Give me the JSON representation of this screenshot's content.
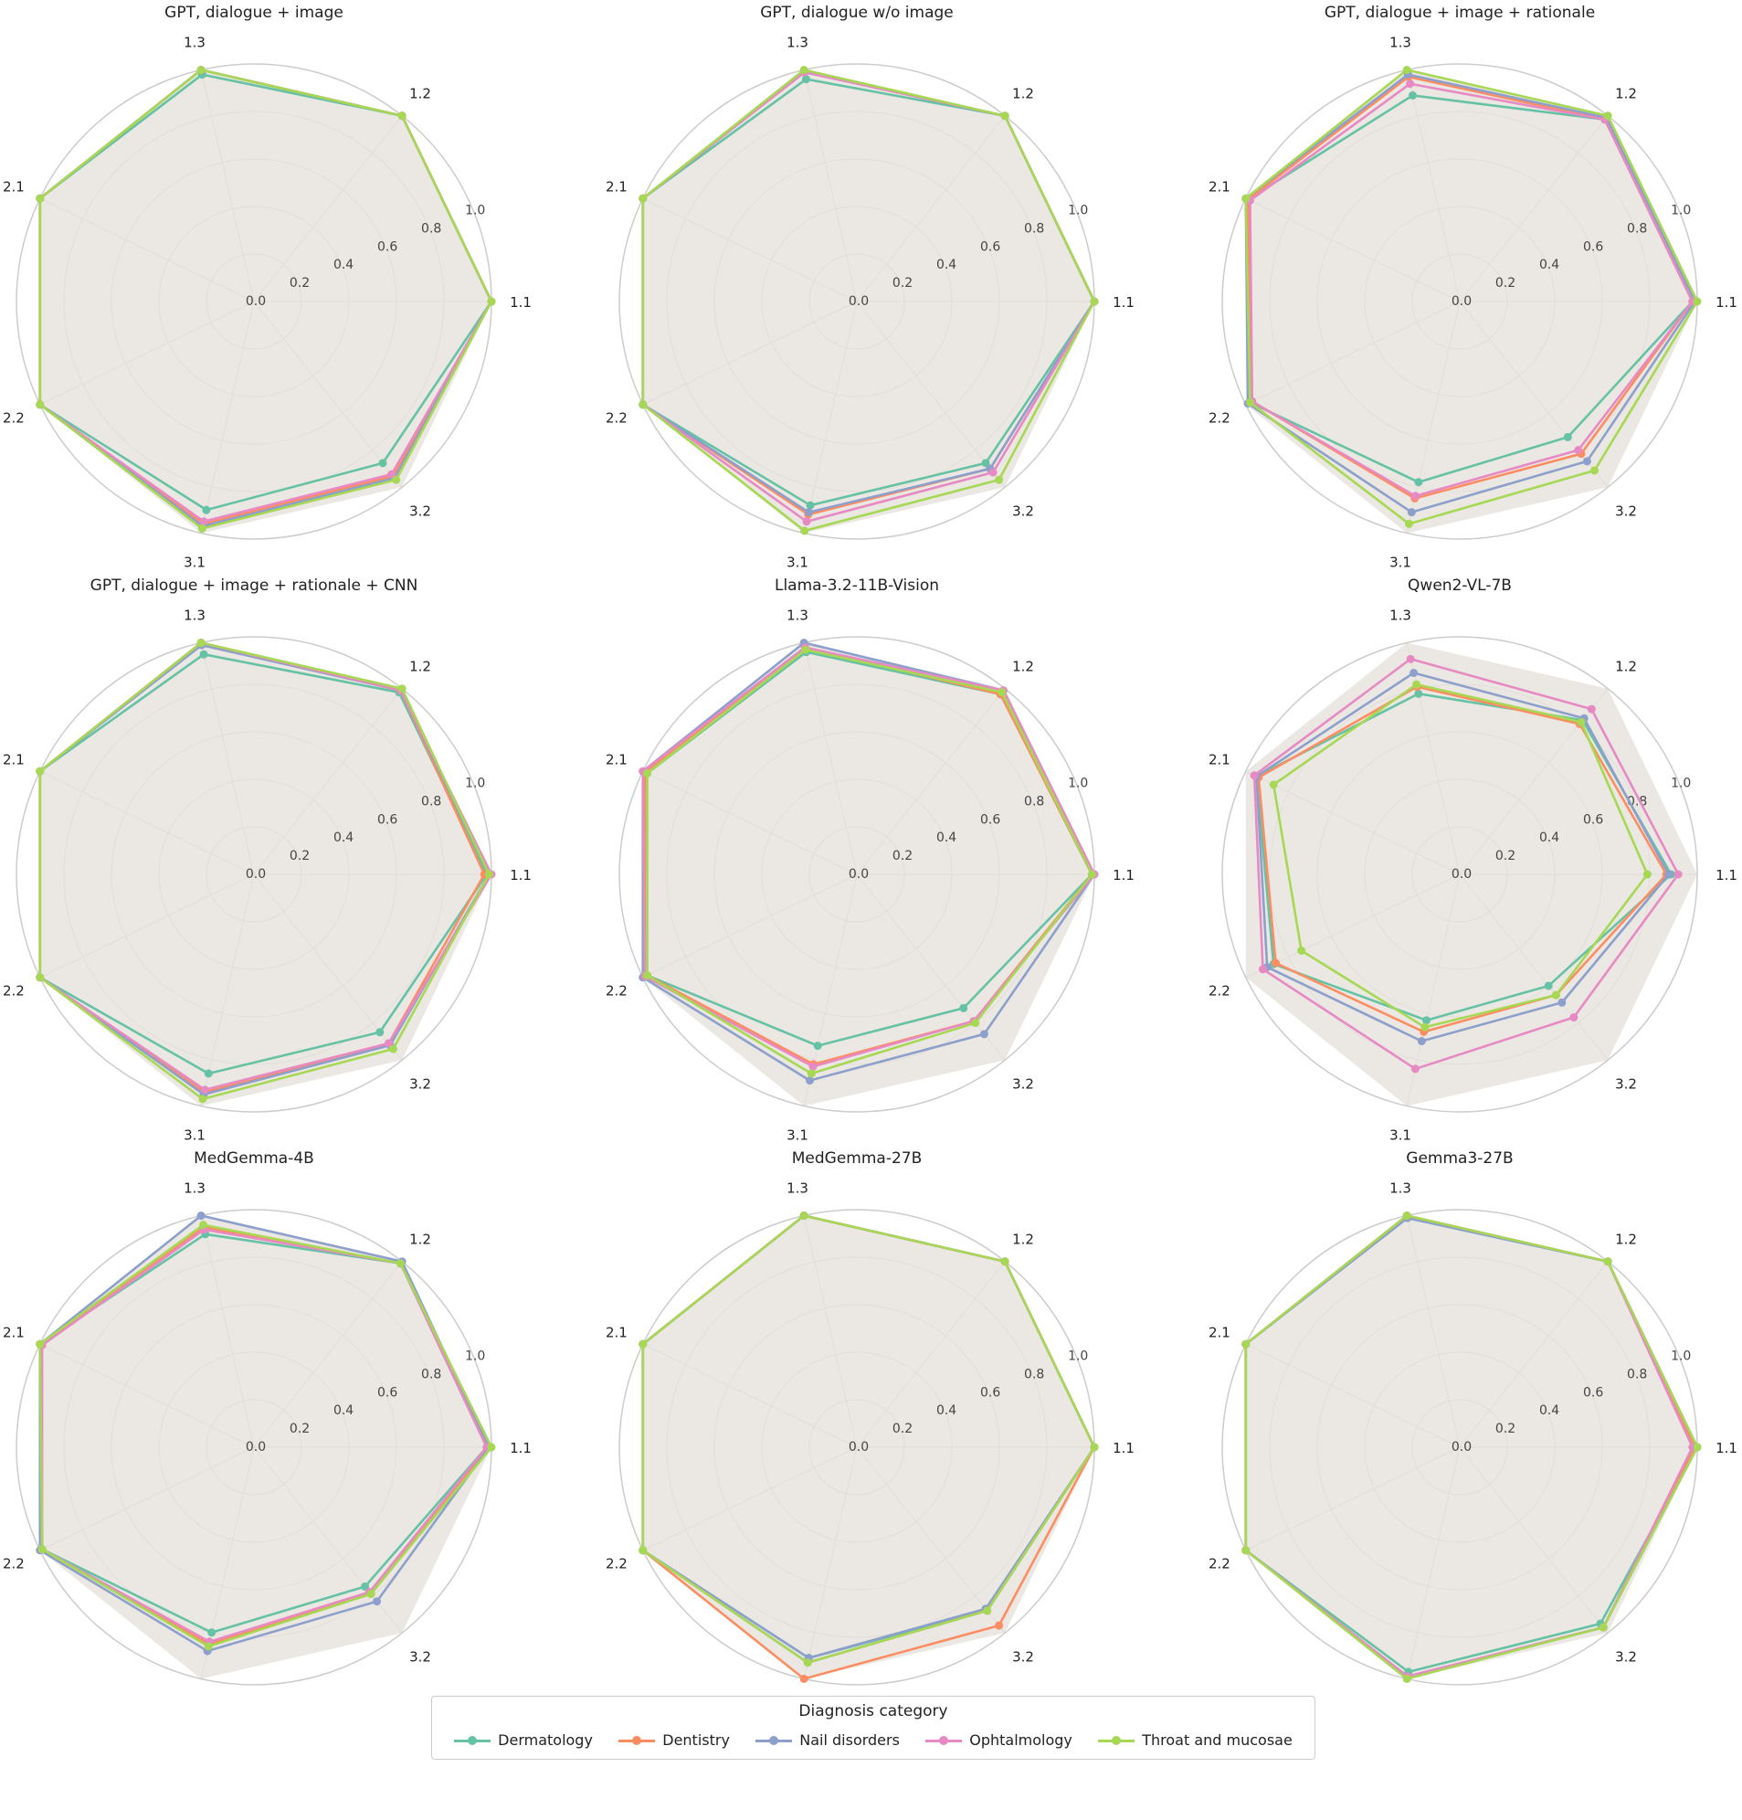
{
  "axes": [
    "1.1",
    "1.2",
    "1.3",
    "2.1",
    "2.2",
    "3.1",
    "3.2"
  ],
  "radial_ticks": [
    "0.0",
    "0.2",
    "0.4",
    "0.6",
    "0.8",
    "1.0"
  ],
  "colors": {
    "Dermatology": "#66c2a5",
    "Dentistry": "#fc8d62",
    "Nail disorders": "#8da0cb",
    "Ophtalmology": "#e78ac3",
    "Throat and mucosae": "#a6d854",
    "fill": "#e6e2dc",
    "grid": "#cccccc"
  },
  "legend": {
    "title": "Diagnosis category",
    "items": [
      "Dermatology",
      "Dentistry",
      "Nail disorders",
      "Ophtalmology",
      "Throat and mucosae"
    ]
  },
  "chart_data": [
    {
      "type": "radar",
      "title": "GPT, dialogue + image",
      "categories": [
        "1.1",
        "1.2",
        "1.3",
        "2.1",
        "2.2",
        "3.1",
        "3.2"
      ],
      "rlim": [
        0,
        1
      ],
      "series": [
        {
          "name": "Dermatology",
          "values": [
            1.0,
            1.0,
            0.98,
            1.0,
            1.0,
            0.9,
            0.87
          ]
        },
        {
          "name": "Dentistry",
          "values": [
            1.0,
            1.0,
            1.0,
            1.0,
            1.0,
            0.96,
            0.94
          ]
        },
        {
          "name": "Nail disorders",
          "values": [
            1.0,
            1.0,
            1.0,
            1.0,
            1.0,
            0.97,
            0.95
          ]
        },
        {
          "name": "Ophtalmology",
          "values": [
            1.0,
            1.0,
            1.0,
            1.0,
            1.0,
            0.95,
            0.93
          ]
        },
        {
          "name": "Throat and mucosae",
          "values": [
            1.0,
            1.0,
            1.0,
            1.0,
            1.0,
            0.98,
            0.96
          ]
        }
      ]
    },
    {
      "type": "radar",
      "title": "GPT, dialogue w/o image",
      "categories": [
        "1.1",
        "1.2",
        "1.3",
        "2.1",
        "2.2",
        "3.1",
        "3.2"
      ],
      "rlim": [
        0,
        1
      ],
      "series": [
        {
          "name": "Dermatology",
          "values": [
            1.0,
            1.0,
            0.96,
            1.0,
            1.0,
            0.88,
            0.87
          ]
        },
        {
          "name": "Dentistry",
          "values": [
            1.0,
            1.0,
            0.99,
            1.0,
            1.0,
            0.92,
            0.9
          ]
        },
        {
          "name": "Nail disorders",
          "values": [
            1.0,
            1.0,
            0.99,
            1.0,
            1.0,
            0.91,
            0.9
          ]
        },
        {
          "name": "Ophtalmology",
          "values": [
            1.0,
            1.0,
            0.99,
            1.0,
            1.0,
            0.95,
            0.92
          ]
        },
        {
          "name": "Throat and mucosae",
          "values": [
            1.0,
            1.0,
            1.0,
            1.0,
            1.0,
            0.99,
            0.96
          ]
        }
      ]
    },
    {
      "type": "radar",
      "title": "GPT, dialogue + image + rationale",
      "categories": [
        "1.1",
        "1.2",
        "1.3",
        "2.1",
        "2.2",
        "3.1",
        "3.2"
      ],
      "rlim": [
        0,
        1
      ],
      "series": [
        {
          "name": "Dermatology",
          "values": [
            0.98,
            0.98,
            0.89,
            0.99,
            0.98,
            0.78,
            0.73
          ]
        },
        {
          "name": "Dentistry",
          "values": [
            0.98,
            0.98,
            0.97,
            0.99,
            0.97,
            0.85,
            0.82
          ]
        },
        {
          "name": "Nail disorders",
          "values": [
            0.99,
            0.99,
            0.98,
            1.0,
            0.99,
            0.91,
            0.86
          ]
        },
        {
          "name": "Ophtalmology",
          "values": [
            0.98,
            0.98,
            0.94,
            0.98,
            0.97,
            0.84,
            0.8
          ]
        },
        {
          "name": "Throat and mucosae",
          "values": [
            1.0,
            1.0,
            1.0,
            1.0,
            0.98,
            0.96,
            0.91
          ]
        }
      ]
    },
    {
      "type": "radar",
      "title": "GPT, dialogue + image + rationale + CNN",
      "categories": [
        "1.1",
        "1.2",
        "1.3",
        "2.1",
        "2.2",
        "3.1",
        "3.2"
      ],
      "rlim": [
        0,
        1
      ],
      "series": [
        {
          "name": "Dermatology",
          "values": [
            0.98,
            0.98,
            0.95,
            1.0,
            1.0,
            0.86,
            0.85
          ]
        },
        {
          "name": "Dentistry",
          "values": [
            0.97,
            0.99,
            1.0,
            1.0,
            1.0,
            0.94,
            0.91
          ]
        },
        {
          "name": "Nail disorders",
          "values": [
            0.99,
            0.99,
            0.99,
            1.0,
            1.0,
            0.95,
            0.92
          ]
        },
        {
          "name": "Ophtalmology",
          "values": [
            1.0,
            0.99,
            1.0,
            1.0,
            1.0,
            0.93,
            0.91
          ]
        },
        {
          "name": "Throat and mucosae",
          "values": [
            0.99,
            1.0,
            1.0,
            1.0,
            1.0,
            0.97,
            0.94
          ]
        }
      ]
    },
    {
      "type": "radar",
      "title": "Llama-3.2-11B-Vision",
      "categories": [
        "1.1",
        "1.2",
        "1.3",
        "2.1",
        "2.2",
        "3.1",
        "3.2"
      ],
      "rlim": [
        0,
        1
      ],
      "series": [
        {
          "name": "Dermatology",
          "values": [
            0.99,
            0.97,
            0.96,
            0.98,
            0.98,
            0.74,
            0.72
          ]
        },
        {
          "name": "Dentistry",
          "values": [
            0.99,
            0.97,
            0.98,
            0.99,
            0.98,
            0.82,
            0.79
          ]
        },
        {
          "name": "Nail disorders",
          "values": [
            1.0,
            0.99,
            1.0,
            1.0,
            1.0,
            0.89,
            0.86
          ]
        },
        {
          "name": "Ophtalmology",
          "values": [
            1.0,
            0.99,
            0.98,
            1.0,
            0.99,
            0.83,
            0.79
          ]
        },
        {
          "name": "Throat and mucosae",
          "values": [
            0.99,
            0.98,
            0.97,
            0.98,
            0.98,
            0.86,
            0.8
          ]
        }
      ]
    },
    {
      "type": "radar",
      "title": "Qwen2-VL-7B",
      "categories": [
        "1.1",
        "1.2",
        "1.3",
        "2.1",
        "2.2",
        "3.1",
        "3.2"
      ],
      "rlim": [
        0,
        1
      ],
      "series": [
        {
          "name": "Dermatology",
          "values": [
            0.89,
            0.83,
            0.78,
            0.95,
            0.87,
            0.63,
            0.6
          ]
        },
        {
          "name": "Dentistry",
          "values": [
            0.87,
            0.81,
            0.81,
            0.94,
            0.86,
            0.68,
            0.65
          ]
        },
        {
          "name": "Nail disorders",
          "values": [
            0.88,
            0.84,
            0.87,
            0.95,
            0.9,
            0.72,
            0.69
          ]
        },
        {
          "name": "Ophtalmology",
          "values": [
            0.92,
            0.89,
            0.93,
            0.96,
            0.92,
            0.84,
            0.77
          ]
        },
        {
          "name": "Throat and mucosae",
          "values": [
            0.79,
            0.82,
            0.82,
            0.87,
            0.74,
            0.66,
            0.65
          ]
        }
      ]
    },
    {
      "type": "radar",
      "title": "MedGemma-4B",
      "categories": [
        "1.1",
        "1.2",
        "1.3",
        "2.1",
        "2.2",
        "3.1",
        "3.2"
      ],
      "rlim": [
        0,
        1
      ],
      "series": [
        {
          "name": "Dermatology",
          "values": [
            0.98,
            0.99,
            0.92,
            1.0,
            0.99,
            0.8,
            0.75
          ]
        },
        {
          "name": "Dentistry",
          "values": [
            0.99,
            0.99,
            0.95,
            1.0,
            0.99,
            0.85,
            0.79
          ]
        },
        {
          "name": "Nail disorders",
          "values": [
            0.99,
            1.0,
            1.0,
            1.0,
            1.0,
            0.88,
            0.83
          ]
        },
        {
          "name": "Ophtalmology",
          "values": [
            0.98,
            0.99,
            0.94,
            0.99,
            0.99,
            0.84,
            0.78
          ]
        },
        {
          "name": "Throat and mucosae",
          "values": [
            1.0,
            0.99,
            0.96,
            1.0,
            0.99,
            0.86,
            0.79
          ]
        }
      ]
    },
    {
      "type": "radar",
      "title": "MedGemma-27B",
      "categories": [
        "1.1",
        "1.2",
        "1.3",
        "2.1",
        "2.2",
        "3.1",
        "3.2"
      ],
      "rlim": [
        0,
        1
      ],
      "series": [
        {
          "name": "Dermatology",
          "values": [
            1.0,
            1.0,
            1.0,
            1.0,
            1.0,
            0.91,
            0.88
          ]
        },
        {
          "name": "Dentistry",
          "values": [
            1.0,
            1.0,
            1.0,
            1.0,
            1.0,
            1.0,
            0.96
          ]
        },
        {
          "name": "Nail disorders",
          "values": [
            1.0,
            1.0,
            1.0,
            1.0,
            1.0,
            0.91,
            0.87
          ]
        },
        {
          "name": "Ophtalmology",
          "values": [
            1.0,
            1.0,
            1.0,
            1.0,
            1.0,
            0.93,
            0.88
          ]
        },
        {
          "name": "Throat and mucosae",
          "values": [
            1.0,
            1.0,
            1.0,
            1.0,
            1.0,
            0.93,
            0.88
          ]
        }
      ]
    },
    {
      "type": "radar",
      "title": "Gemma3-27B",
      "categories": [
        "1.1",
        "1.2",
        "1.3",
        "2.1",
        "2.2",
        "3.1",
        "3.2"
      ],
      "rlim": [
        0,
        1
      ],
      "series": [
        {
          "name": "Dermatology",
          "values": [
            1.0,
            1.0,
            0.99,
            1.0,
            1.0,
            0.97,
            0.95
          ]
        },
        {
          "name": "Dentistry",
          "values": [
            0.99,
            1.0,
            1.0,
            1.0,
            1.0,
            0.99,
            0.97
          ]
        },
        {
          "name": "Nail disorders",
          "values": [
            1.0,
            1.0,
            0.99,
            1.0,
            1.0,
            0.99,
            0.97
          ]
        },
        {
          "name": "Ophtalmology",
          "values": [
            0.98,
            1.0,
            1.0,
            1.0,
            1.0,
            0.99,
            0.97
          ]
        },
        {
          "name": "Throat and mucosae",
          "values": [
            1.0,
            1.0,
            1.0,
            1.0,
            1.0,
            1.0,
            0.97
          ]
        }
      ]
    }
  ]
}
